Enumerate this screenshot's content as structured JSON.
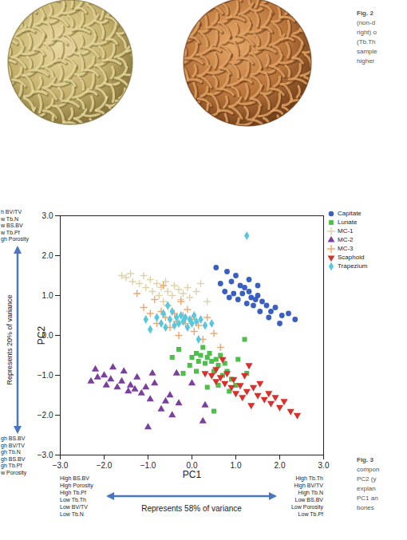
{
  "chart_data": {
    "type": "scatter",
    "x_label": "PC1",
    "y_label": "PC2",
    "xlim": [
      -3,
      3
    ],
    "ylim": [
      -3,
      3
    ],
    "xticks": [
      -3,
      -2,
      -1,
      0,
      1,
      2,
      3
    ],
    "yticks": [
      -3,
      -2,
      -1,
      0,
      1,
      2,
      3
    ],
    "grid": false,
    "legend": "right",
    "annotations": {
      "y_top_lines": [
        "h BV/TV",
        "w Tb.N",
        "w BS.BV",
        "w Tb.Pf",
        "gh Porosity"
      ],
      "y_bottom_lines": [
        "gh BS.BV",
        "gh BV/TV",
        "gh Tb.N",
        "gh BS.BV",
        "gh Tb.Pf",
        "w Porosity"
      ],
      "y_arrow_label": "Represents 20% of variance",
      "x_left_lines": [
        "High BS.BV",
        "High Porosity",
        "High Tb.Pf",
        "Low Tb.Th",
        "Low BV/TV",
        "Low Tb.N"
      ],
      "x_right_lines": [
        "High Tb.Th",
        "High BV/TV",
        "High Tb.N",
        "Low BS.BV",
        "Low Porosity",
        "Low Tb.Pf"
      ],
      "x_arrow_label": "Represents 58% of variance"
    },
    "series": [
      {
        "name": "Capitate",
        "color": "#3b5fc0",
        "marker": "circle",
        "values": [
          [
            0.55,
            1.7
          ],
          [
            0.8,
            1.6
          ],
          [
            0.65,
            1.3
          ],
          [
            0.9,
            1.35
          ],
          [
            1.0,
            1.5
          ],
          [
            1.1,
            1.25
          ],
          [
            1.2,
            1.2
          ],
          [
            0.95,
            1.05
          ],
          [
            1.15,
            1.05
          ],
          [
            1.3,
            1.1
          ],
          [
            1.35,
            0.95
          ],
          [
            1.45,
            0.9
          ],
          [
            1.5,
            1.0
          ],
          [
            1.6,
            0.85
          ],
          [
            1.25,
            0.8
          ],
          [
            1.4,
            0.75
          ],
          [
            1.7,
            0.75
          ],
          [
            1.8,
            0.6
          ],
          [
            1.55,
            0.6
          ],
          [
            1.9,
            0.7
          ],
          [
            2.05,
            0.5
          ],
          [
            2.2,
            0.55
          ],
          [
            2.35,
            0.4
          ],
          [
            1.75,
            0.45
          ],
          [
            1.05,
            0.9
          ],
          [
            0.75,
            1.1
          ],
          [
            1.3,
            1.4
          ],
          [
            1.5,
            1.25
          ],
          [
            2.0,
            0.3
          ],
          [
            0.85,
            0.95
          ]
        ]
      },
      {
        "name": "Lunate",
        "color": "#4cc04a",
        "marker": "square",
        "values": [
          [
            -0.45,
            -0.55
          ],
          [
            -0.3,
            -0.35
          ],
          [
            -0.05,
            -0.75
          ],
          [
            0.0,
            -0.55
          ],
          [
            0.1,
            -0.45
          ],
          [
            0.15,
            -0.65
          ],
          [
            0.2,
            -0.5
          ],
          [
            0.25,
            -0.3
          ],
          [
            0.3,
            -0.7
          ],
          [
            0.35,
            -0.55
          ],
          [
            0.4,
            -0.45
          ],
          [
            0.45,
            -0.65
          ],
          [
            0.5,
            -0.9
          ],
          [
            0.55,
            -0.6
          ],
          [
            0.6,
            -0.75
          ],
          [
            0.65,
            -0.5
          ],
          [
            0.7,
            -1.0
          ],
          [
            0.75,
            -0.7
          ],
          [
            0.8,
            -0.9
          ],
          [
            0.9,
            -1.1
          ],
          [
            1.0,
            -1.25
          ],
          [
            1.05,
            -0.6
          ],
          [
            1.2,
            -0.1
          ],
          [
            1.25,
            -0.95
          ],
          [
            0.5,
            -1.9
          ],
          [
            0.35,
            -1.3
          ],
          [
            0.85,
            -1.4
          ],
          [
            -0.2,
            -0.95
          ],
          [
            0.1,
            -0.9
          ],
          [
            0.6,
            -1.25
          ]
        ]
      },
      {
        "name": "MC-1",
        "color": "#ddd2a8",
        "marker": "plus",
        "values": [
          [
            -1.6,
            1.5
          ],
          [
            -1.5,
            1.45
          ],
          [
            -1.4,
            1.55
          ],
          [
            -1.35,
            1.35
          ],
          [
            -1.2,
            1.3
          ],
          [
            -1.1,
            1.5
          ],
          [
            -1.05,
            1.2
          ],
          [
            -0.95,
            1.4
          ],
          [
            -0.9,
            1.1
          ],
          [
            -0.8,
            1.3
          ],
          [
            -0.75,
            1.0
          ],
          [
            -0.7,
            1.2
          ],
          [
            -0.6,
            1.35
          ],
          [
            -0.55,
            1.1
          ],
          [
            -0.45,
            1.0
          ],
          [
            -0.4,
            1.25
          ],
          [
            -0.3,
            1.15
          ],
          [
            -0.25,
            0.9
          ],
          [
            -0.2,
            1.05
          ],
          [
            -0.1,
            1.2
          ],
          [
            -0.05,
            0.95
          ],
          [
            0.1,
            1.1
          ],
          [
            0.2,
            1.3
          ],
          [
            0.35,
            0.85
          ],
          [
            -0.65,
            0.85
          ]
        ]
      },
      {
        "name": "MC-2",
        "color": "#7b3f9e",
        "marker": "triangle",
        "values": [
          [
            -2.3,
            -1.15
          ],
          [
            -2.2,
            -0.85
          ],
          [
            -2.15,
            -1.05
          ],
          [
            -2.0,
            -1.0
          ],
          [
            -1.95,
            -1.25
          ],
          [
            -1.85,
            -1.1
          ],
          [
            -1.8,
            -0.8
          ],
          [
            -1.7,
            -1.3
          ],
          [
            -1.6,
            -1.15
          ],
          [
            -1.55,
            -0.9
          ],
          [
            -1.45,
            -1.4
          ],
          [
            -1.4,
            -1.25
          ],
          [
            -1.3,
            -1.35
          ],
          [
            -1.25,
            -1.05
          ],
          [
            -1.15,
            -1.45
          ],
          [
            -1.05,
            -1.3
          ],
          [
            -0.95,
            -1.6
          ],
          [
            -0.9,
            -0.95
          ],
          [
            -0.85,
            -1.2
          ],
          [
            -0.7,
            -1.85
          ],
          [
            -0.6,
            -1.65
          ],
          [
            -0.5,
            -1.5
          ],
          [
            -0.45,
            -2.0
          ],
          [
            -1.0,
            -2.3
          ],
          [
            -0.3,
            -1.7
          ],
          [
            0.25,
            -2.15
          ],
          [
            0.0,
            -1.2
          ],
          [
            -0.35,
            -0.95
          ],
          [
            0.3,
            -1.75
          ]
        ]
      },
      {
        "name": "MC-3",
        "color": "#f2a66e",
        "marker": "plus",
        "values": [
          [
            -1.25,
            1.05
          ],
          [
            -1.1,
            0.7
          ],
          [
            -0.95,
            0.55
          ],
          [
            -0.85,
            0.9
          ],
          [
            -0.8,
            0.3
          ],
          [
            -0.7,
            0.6
          ],
          [
            -0.6,
            0.45
          ],
          [
            -0.55,
            0.75
          ],
          [
            -0.5,
            0.2
          ],
          [
            -0.4,
            0.55
          ],
          [
            -0.35,
            0.35
          ],
          [
            -0.3,
            0.0
          ],
          [
            -0.2,
            0.5
          ],
          [
            -0.15,
            0.3
          ],
          [
            -0.1,
            0.65
          ],
          [
            0.0,
            0.4
          ],
          [
            0.05,
            0.1
          ],
          [
            0.15,
            0.25
          ],
          [
            0.25,
            -0.1
          ],
          [
            0.35,
            0.45
          ],
          [
            0.5,
            0.05
          ],
          [
            0.65,
            -0.3
          ],
          [
            -0.65,
            1.25
          ],
          [
            -0.25,
            0.85
          ]
        ]
      },
      {
        "name": "Scaphoid",
        "color": "#d9302b",
        "marker": "triangle-down",
        "values": [
          [
            0.3,
            -0.95
          ],
          [
            0.45,
            -1.0
          ],
          [
            0.55,
            -0.85
          ],
          [
            0.65,
            -1.05
          ],
          [
            0.75,
            -1.2
          ],
          [
            0.8,
            -0.95
          ],
          [
            0.9,
            -1.3
          ],
          [
            0.95,
            -1.1
          ],
          [
            1.0,
            -1.45
          ],
          [
            1.1,
            -1.25
          ],
          [
            1.15,
            -1.55
          ],
          [
            1.25,
            -1.4
          ],
          [
            1.3,
            -0.75
          ],
          [
            1.4,
            -1.3
          ],
          [
            1.5,
            -1.5
          ],
          [
            1.55,
            -1.2
          ],
          [
            1.65,
            -1.6
          ],
          [
            1.75,
            -1.45
          ],
          [
            1.8,
            -1.7
          ],
          [
            1.9,
            -1.55
          ],
          [
            2.0,
            -1.8
          ],
          [
            2.1,
            -1.65
          ],
          [
            2.25,
            -1.9
          ],
          [
            2.4,
            -2.0
          ],
          [
            1.35,
            -1.75
          ],
          [
            0.55,
            -1.15
          ],
          [
            0.7,
            -0.6
          ],
          [
            1.2,
            -1.0
          ]
        ]
      },
      {
        "name": "Trapezium",
        "color": "#5ac8dc",
        "marker": "diamond",
        "values": [
          [
            -1.05,
            0.4
          ],
          [
            -0.95,
            0.15
          ],
          [
            -0.8,
            0.45
          ],
          [
            -0.7,
            0.3
          ],
          [
            -0.65,
            0.55
          ],
          [
            -0.6,
            0.2
          ],
          [
            -0.5,
            0.4
          ],
          [
            -0.45,
            0.6
          ],
          [
            -0.4,
            0.25
          ],
          [
            -0.35,
            0.45
          ],
          [
            -0.3,
            0.3
          ],
          [
            -0.25,
            0.5
          ],
          [
            -0.2,
            0.35
          ],
          [
            -0.15,
            0.45
          ],
          [
            -0.1,
            0.2
          ],
          [
            -0.05,
            0.4
          ],
          [
            0.0,
            0.3
          ],
          [
            0.05,
            0.5
          ],
          [
            0.1,
            0.35
          ],
          [
            0.2,
            0.4
          ],
          [
            0.3,
            0.25
          ],
          [
            0.45,
            0.3
          ],
          [
            -0.55,
            0.75
          ],
          [
            0.15,
            -0.1
          ],
          [
            1.25,
            2.5
          ]
        ]
      }
    ]
  },
  "figure_2_caption": [
    "Fig. 2",
    "(non-d",
    "right) o",
    "(Tb.Th",
    "sample",
    "higher"
  ],
  "figure_3_caption": [
    "Fig. 3",
    "compon",
    "PC2 (y",
    "explan",
    "PC1 an",
    "bones"
  ]
}
